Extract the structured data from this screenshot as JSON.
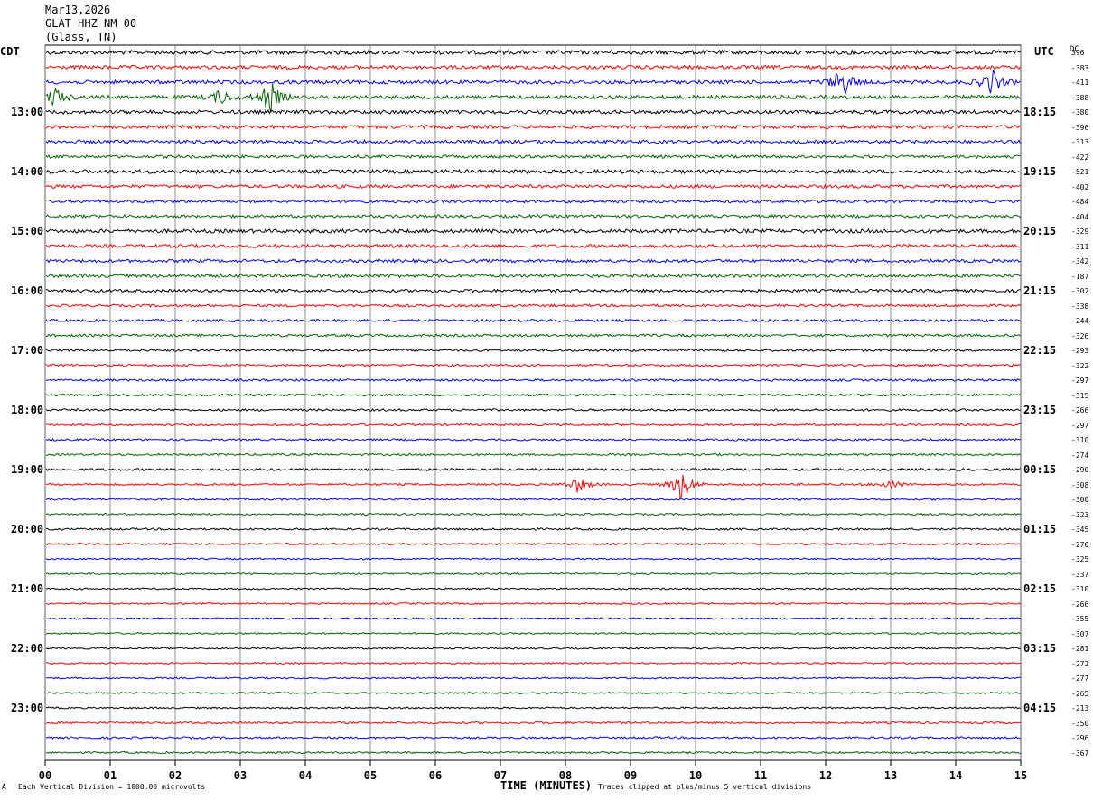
{
  "header": {
    "date": "Mar13,2026",
    "station": "GLAT HHZ NM 00",
    "location": "(Glass, TN)"
  },
  "tz_left": "CDT",
  "tz_right": "UTC",
  "dc_label": "DC",
  "footer": {
    "scale": "Each Vertical Division = 1000.00 microvolts",
    "clip": "Traces clipped at plus/minus 5 vertical divisions",
    "corner_mark": "A"
  },
  "chart_data": {
    "type": "line",
    "title": "",
    "xlabel": "TIME (MINUTES)",
    "ylabel": "",
    "xlim": [
      0,
      15
    ],
    "x_ticks": [
      "00",
      "01",
      "02",
      "03",
      "04",
      "05",
      "06",
      "07",
      "08",
      "09",
      "10",
      "11",
      "12",
      "13",
      "14",
      "15"
    ],
    "grid": true,
    "trace_colors": [
      "#000000",
      "#ff0000",
      "#0000ff",
      "#006400"
    ],
    "left_hour_labels": [
      "13:00",
      "14:00",
      "15:00",
      "16:00",
      "17:00",
      "18:00",
      "19:00",
      "20:00",
      "21:00",
      "22:00",
      "23:00"
    ],
    "right_hour_labels": [
      "18:15",
      "19:15",
      "20:15",
      "21:15",
      "22:15",
      "23:15",
      "00:15",
      "01:15",
      "02:15",
      "03:15",
      "04:15"
    ],
    "dc_offsets": [
      "396",
      "-383",
      "-411",
      "-388",
      "-380",
      "-396",
      "-313",
      "-422",
      "-521",
      "-402",
      "-484",
      "-404",
      "-329",
      "-311",
      "-342",
      "-187",
      "-302",
      "-338",
      "-244",
      "-326",
      "-293",
      "-322",
      "-297",
      "-315",
      "-266",
      "-297",
      "-310",
      "-274",
      "-290",
      "-308",
      "-300",
      "-323",
      "-345",
      "-270",
      "-325",
      "-337",
      "-310",
      "-266",
      "-355",
      "-307",
      "-281",
      "-272",
      "-277",
      "-265",
      "-213",
      "-350",
      "-296",
      "-367"
    ],
    "events": [
      {
        "trace": 2,
        "minute": 12.25,
        "amplitude": 2.2
      },
      {
        "trace": 2,
        "minute": 14.55,
        "amplitude": 1.8
      },
      {
        "trace": 3,
        "minute": 3.45,
        "amplitude": 2.3
      },
      {
        "trace": 3,
        "minute": 2.7,
        "amplitude": 1.0
      },
      {
        "trace": 3,
        "minute": 0.15,
        "amplitude": 1.3
      },
      {
        "trace": 29,
        "minute": 8.2,
        "amplitude": 1.2
      },
      {
        "trace": 29,
        "minute": 9.8,
        "amplitude": 2.4
      },
      {
        "trace": 29,
        "minute": 13.0,
        "amplitude": 0.7
      }
    ]
  }
}
